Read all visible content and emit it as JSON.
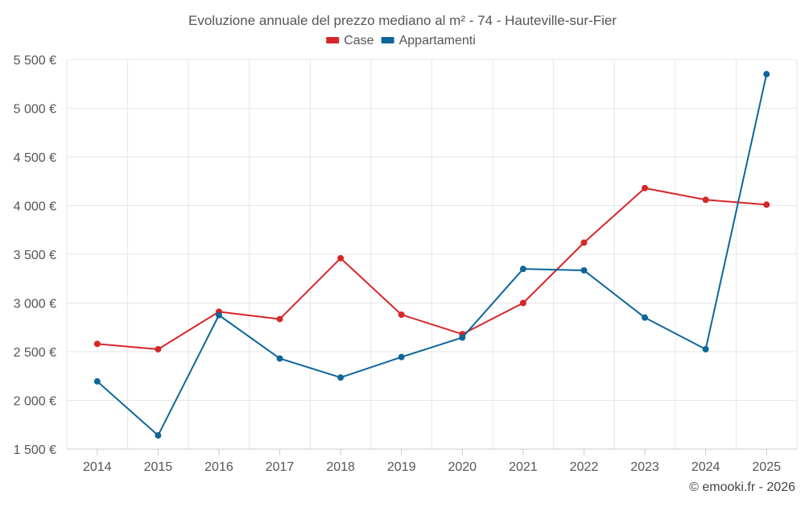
{
  "chart_data": {
    "type": "line",
    "title": "Evoluzione annuale del prezzo mediano al m² - 74 - Hauteville-sur-Fier",
    "x": [
      "2014",
      "2015",
      "2016",
      "2017",
      "2018",
      "2019",
      "2020",
      "2021",
      "2022",
      "2023",
      "2024",
      "2025"
    ],
    "series": [
      {
        "name": "Case",
        "color": "#d62728",
        "values": [
          2580,
          2525,
          2910,
          2835,
          3460,
          2880,
          2680,
          3000,
          3620,
          4180,
          4060,
          4010
        ]
      },
      {
        "name": "Appartamenti",
        "color": "#0e6699",
        "values": [
          2195,
          1640,
          2875,
          2430,
          2235,
          2445,
          2645,
          3350,
          3335,
          2850,
          2525,
          5350
        ]
      }
    ],
    "ylim": [
      1500,
      5500
    ],
    "yticks": [
      1500,
      2000,
      2500,
      3000,
      3500,
      4000,
      4500,
      5000,
      5500
    ],
    "ytick_labels": [
      "1 500 €",
      "2 000 €",
      "2 500 €",
      "3 000 €",
      "3 500 €",
      "4 000 €",
      "4 500 €",
      "5 000 €",
      "5 500 €"
    ],
    "legend_position": "top-center",
    "grid": true,
    "xlabel": "",
    "ylabel": ""
  },
  "credit": "© emooki.fr - 2026"
}
